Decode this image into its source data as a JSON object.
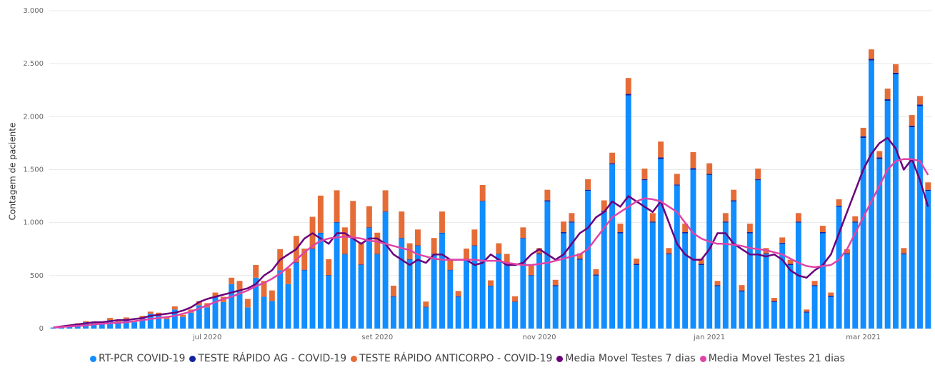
{
  "chart_data": {
    "type": "bar",
    "stacked": true,
    "y_label": "Contagem de paciente",
    "categories": [
      null,
      null,
      null,
      null,
      null,
      null,
      null,
      null,
      null,
      null,
      null,
      null,
      null,
      null,
      null,
      null,
      null,
      null,
      null,
      "jul 2020",
      null,
      null,
      null,
      null,
      null,
      null,
      null,
      null,
      null,
      null,
      null,
      null,
      null,
      null,
      null,
      null,
      null,
      null,
      null,
      null,
      "set 2020",
      null,
      null,
      null,
      null,
      null,
      null,
      null,
      null,
      null,
      null,
      null,
      null,
      null,
      null,
      null,
      null,
      null,
      null,
      null,
      "nov 2020",
      null,
      null,
      null,
      null,
      null,
      null,
      null,
      null,
      null,
      null,
      null,
      null,
      null,
      null,
      null,
      null,
      null,
      null,
      null,
      null,
      "jan 2021",
      null,
      null,
      null,
      null,
      null,
      null,
      null,
      null,
      null,
      null,
      null,
      null,
      null,
      null,
      null,
      null,
      null,
      null,
      "mar 2021",
      null,
      null,
      null,
      null,
      null,
      null,
      null,
      null
    ],
    "ylim": [
      0,
      3000
    ],
    "yticks": [
      0,
      500,
      {
        "value": 1000,
        "label": "1.000"
      },
      {
        "value": 1500,
        "label": "1.500"
      },
      {
        "value": 2000,
        "label": "2.000"
      },
      {
        "value": 2500,
        "label": "2.500"
      },
      {
        "value": 3000,
        "label": "3.000"
      }
    ],
    "grid": true,
    "series": [
      {
        "name": "RT-PCR COVID-19",
        "color": "#118dff",
        "type": "bar",
        "values": [
          10,
          20,
          30,
          40,
          60,
          50,
          40,
          80,
          60,
          90,
          60,
          100,
          140,
          120,
          90,
          180,
          110,
          150,
          220,
          200,
          300,
          250,
          420,
          350,
          200,
          480,
          300,
          260,
          550,
          420,
          620,
          550,
          750,
          900,
          500,
          1000,
          700,
          850,
          600,
          950,
          700,
          1100,
          300,
          850,
          650,
          780,
          200,
          700,
          900,
          550,
          300,
          650,
          780,
          1200,
          400,
          700,
          600,
          250,
          850,
          500,
          700,
          1200,
          400,
          900,
          1000,
          650,
          1300,
          500,
          1100,
          1550,
          900,
          2200,
          600,
          1400,
          1000,
          1600,
          700,
          1350,
          900,
          1500,
          600,
          1450,
          400,
          1000,
          1200,
          350,
          900,
          1400,
          700,
          250,
          800,
          600,
          1000,
          150,
          400,
          900,
          300,
          1150,
          700,
          1000,
          1800,
          2530,
          1600,
          2150,
          2400,
          700,
          1900,
          2100,
          1300
        ]
      },
      {
        "name": "TESTE RÁPIDO AG - COVID-19",
        "color": "#12239e",
        "type": "bar",
        "values": [
          0,
          0,
          0,
          0,
          0,
          0,
          0,
          0,
          0,
          0,
          0,
          0,
          0,
          0,
          0,
          0,
          0,
          0,
          0,
          0,
          0,
          0,
          0,
          0,
          0,
          0,
          0,
          0,
          0,
          0,
          5,
          5,
          5,
          5,
          5,
          5,
          5,
          5,
          5,
          5,
          5,
          5,
          5,
          5,
          5,
          5,
          5,
          5,
          5,
          5,
          5,
          5,
          5,
          5,
          5,
          5,
          5,
          5,
          5,
          5,
          10,
          10,
          10,
          10,
          10,
          10,
          10,
          10,
          10,
          10,
          10,
          15,
          10,
          10,
          10,
          15,
          10,
          10,
          10,
          15,
          10,
          10,
          10,
          10,
          10,
          10,
          10,
          10,
          10,
          10,
          10,
          10,
          10,
          10,
          10,
          10,
          10,
          10,
          10,
          10,
          15,
          15,
          15,
          15,
          15,
          10,
          15,
          15,
          10
        ]
      },
      {
        "name": "TESTE RÁPIDO ANTICORPO - COVID-19",
        "color": "#e66c37",
        "type": "bar",
        "values": [
          0,
          5,
          5,
          10,
          10,
          10,
          5,
          20,
          10,
          15,
          10,
          20,
          20,
          30,
          20,
          30,
          20,
          30,
          40,
          40,
          40,
          50,
          60,
          100,
          80,
          120,
          150,
          100,
          200,
          150,
          250,
          200,
          300,
          350,
          150,
          300,
          250,
          350,
          200,
          200,
          200,
          200,
          100,
          250,
          150,
          150,
          50,
          150,
          200,
          100,
          50,
          100,
          150,
          150,
          50,
          100,
          100,
          50,
          100,
          100,
          50,
          100,
          50,
          100,
          80,
          50,
          100,
          50,
          100,
          100,
          80,
          150,
          50,
          100,
          80,
          150,
          50,
          100,
          80,
          150,
          50,
          100,
          40,
          80,
          100,
          50,
          80,
          100,
          50,
          30,
          50,
          40,
          80,
          20,
          40,
          60,
          30,
          60,
          40,
          50,
          80,
          90,
          60,
          100,
          80,
          50,
          100,
          80,
          70
        ]
      },
      {
        "name": "Media Movel Testes 7 dias",
        "color": "#6b007b",
        "type": "line",
        "values": [
          10,
          20,
          30,
          40,
          50,
          60,
          60,
          70,
          80,
          80,
          90,
          100,
          120,
          130,
          140,
          150,
          170,
          200,
          250,
          280,
          300,
          320,
          340,
          360,
          380,
          420,
          500,
          550,
          650,
          700,
          750,
          850,
          900,
          850,
          800,
          900,
          900,
          850,
          800,
          850,
          850,
          800,
          700,
          650,
          600,
          650,
          620,
          700,
          700,
          650,
          650,
          650,
          600,
          620,
          700,
          650,
          600,
          600,
          620,
          700,
          750,
          700,
          650,
          700,
          800,
          900,
          950,
          1050,
          1100,
          1200,
          1150,
          1250,
          1200,
          1150,
          1100,
          1200,
          1000,
          800,
          700,
          650,
          650,
          750,
          900,
          900,
          800,
          750,
          700,
          700,
          680,
          700,
          650,
          550,
          500,
          480,
          550,
          600,
          700,
          900,
          1100,
          1300,
          1500,
          1650,
          1750,
          1800,
          1700,
          1500,
          1600,
          1400,
          1150
        ]
      },
      {
        "name": "Media Movel Testes 21 dias",
        "color": "#e044a7",
        "type": "line",
        "values": [
          10,
          15,
          20,
          25,
          30,
          40,
          45,
          50,
          55,
          60,
          70,
          80,
          90,
          100,
          110,
          120,
          140,
          160,
          190,
          220,
          250,
          280,
          300,
          330,
          360,
          400,
          430,
          470,
          520,
          580,
          650,
          720,
          780,
          830,
          850,
          860,
          870,
          860,
          850,
          830,
          820,
          800,
          780,
          760,
          740,
          700,
          680,
          660,
          650,
          650,
          650,
          650,
          650,
          640,
          640,
          640,
          620,
          610,
          600,
          600,
          610,
          620,
          640,
          660,
          680,
          700,
          750,
          850,
          950,
          1050,
          1100,
          1150,
          1200,
          1230,
          1220,
          1200,
          1150,
          1100,
          1000,
          900,
          850,
          820,
          800,
          800,
          790,
          780,
          760,
          750,
          740,
          720,
          700,
          660,
          620,
          590,
          580,
          590,
          600,
          650,
          750,
          900,
          1050,
          1200,
          1350,
          1500,
          1580,
          1600,
          1600,
          1580,
          1450
        ]
      }
    ]
  }
}
